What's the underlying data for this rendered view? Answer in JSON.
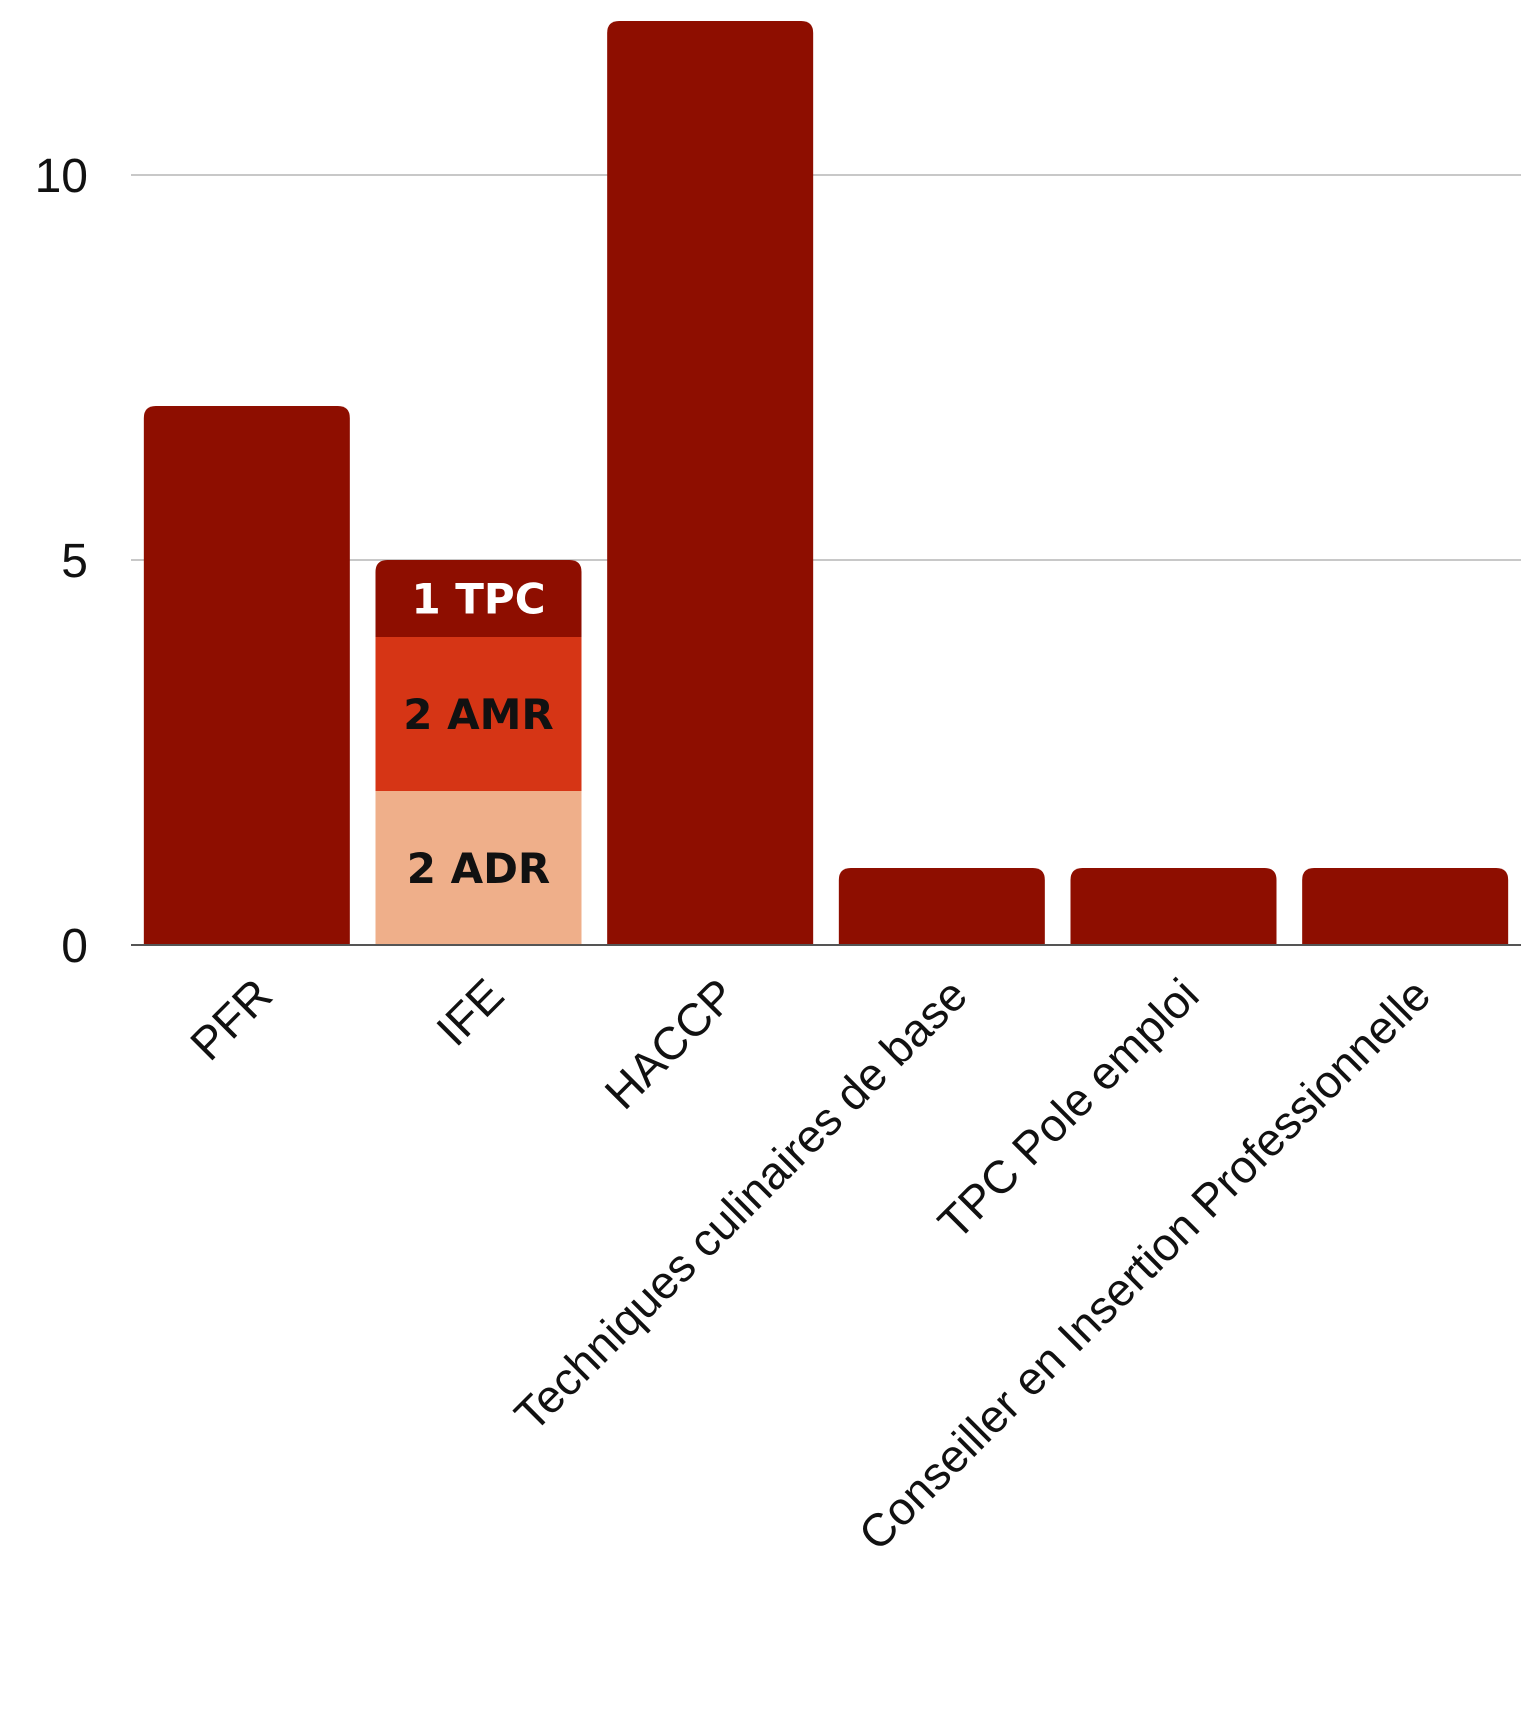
{
  "chart_data": {
    "type": "bar",
    "stacked": true,
    "categories": [
      "PFR",
      "IFE",
      "HACCP",
      "Techniques culinaires de base",
      "TPC Pole emploi",
      "Conseiller en Insertion Professionnelle"
    ],
    "yticks": [
      "0",
      "5",
      "10"
    ],
    "ylim": [
      0,
      12
    ],
    "grid": true,
    "series": [
      {
        "values": [
          7,
          2,
          12,
          1,
          1,
          1
        ],
        "color": "#8e0e00",
        "labels": [
          "",
          "2 ADR",
          "",
          "",
          "",
          ""
        ]
      },
      {
        "values": [
          0,
          2,
          0,
          0,
          0,
          0
        ],
        "color": "#d63515",
        "labels": [
          "",
          "2 AMR",
          "",
          "",
          "",
          ""
        ]
      },
      {
        "values": [
          0,
          1,
          0,
          0,
          0,
          0
        ],
        "color": "#8e0e00",
        "labels": [
          "",
          "1 TPC",
          "",
          "",
          "",
          ""
        ]
      }
    ],
    "segment_colors": {
      "IFE": [
        "#efaf8a",
        "#d63515",
        "#8e0e00"
      ]
    },
    "segment_label_colors": [
      "#111111",
      "#111111",
      "#ffffff"
    ]
  }
}
